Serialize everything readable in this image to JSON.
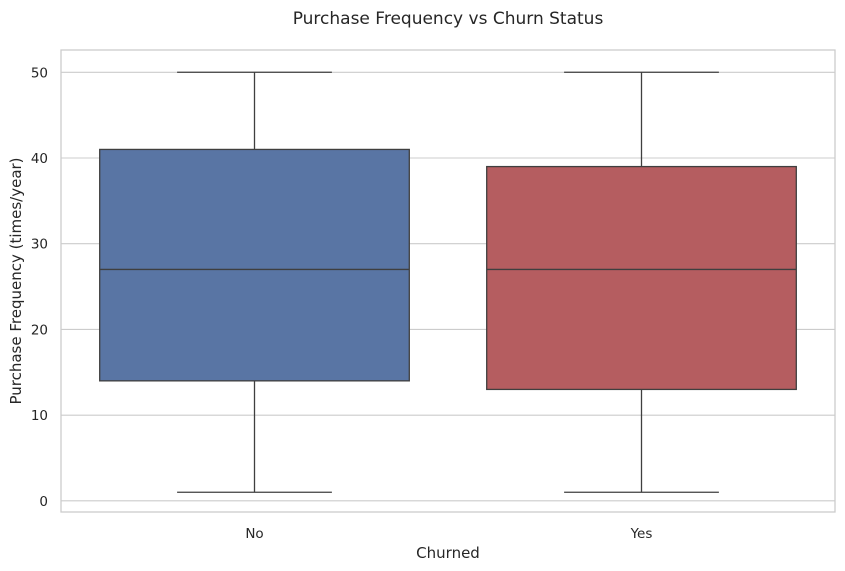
{
  "chart_data": {
    "type": "box",
    "title": "Purchase Frequency vs Churn Status",
    "xlabel": "Churned",
    "ylabel": "Purchase Frequency (times/year)",
    "ylim": [
      -1.3,
      52.6
    ],
    "yticks": [
      0,
      10,
      20,
      30,
      40,
      50
    ],
    "grid": "y",
    "categories": [
      "No",
      "Yes"
    ],
    "boxes": [
      {
        "category": "No",
        "min": 1,
        "q1": 14,
        "median": 27,
        "q3": 41,
        "max": 50,
        "color": "#5975a4"
      },
      {
        "category": "Yes",
        "min": 1,
        "q1": 13,
        "median": 27,
        "q3": 39,
        "max": 50,
        "color": "#b55d60"
      }
    ]
  }
}
